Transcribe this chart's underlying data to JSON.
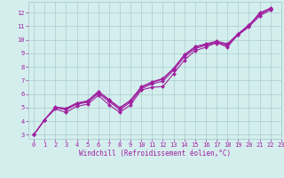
{
  "xlabel": "Windchill (Refroidissement éolien,°C)",
  "background_color": "#d4eeee",
  "line_color": "#a020a0",
  "grid_color": "#aacccc",
  "xlim": [
    -0.5,
    23
  ],
  "ylim": [
    2.7,
    12.8
  ],
  "xticks": [
    0,
    1,
    2,
    3,
    4,
    5,
    6,
    7,
    8,
    9,
    10,
    11,
    12,
    13,
    14,
    15,
    16,
    17,
    18,
    19,
    20,
    21,
    22,
    23
  ],
  "yticks": [
    3,
    4,
    5,
    6,
    7,
    8,
    9,
    10,
    11,
    12
  ],
  "series": [
    {
      "x": [
        0,
        1,
        2,
        3,
        4,
        5,
        6,
        7,
        8,
        9,
        10,
        11,
        12,
        13,
        14,
        15,
        16,
        17,
        18,
        19,
        20,
        21,
        22
      ],
      "y": [
        3.0,
        4.1,
        4.9,
        4.65,
        5.1,
        5.25,
        5.9,
        5.2,
        4.65,
        5.2,
        6.3,
        6.5,
        6.55,
        7.5,
        8.5,
        9.2,
        9.45,
        9.8,
        9.45,
        10.4,
        11.0,
        12.0,
        12.3
      ]
    },
    {
      "x": [
        0,
        1,
        2,
        3,
        4,
        5,
        6,
        7,
        8,
        9,
        10,
        11,
        12,
        13,
        14,
        15,
        16,
        17,
        18,
        19,
        20,
        21,
        22
      ],
      "y": [
        3.0,
        4.1,
        5.0,
        4.85,
        5.25,
        5.4,
        6.05,
        5.45,
        4.85,
        5.4,
        6.4,
        6.75,
        6.95,
        7.75,
        8.75,
        9.35,
        9.6,
        9.75,
        9.6,
        10.35,
        10.95,
        11.75,
        12.2
      ]
    },
    {
      "x": [
        0,
        1,
        2,
        3,
        4,
        5,
        6,
        7,
        8,
        9,
        10,
        11,
        12,
        13,
        14,
        15,
        16,
        17,
        18,
        19,
        20,
        21,
        22
      ],
      "y": [
        3.0,
        4.1,
        5.0,
        4.9,
        5.3,
        5.45,
        6.15,
        5.55,
        4.95,
        5.5,
        6.5,
        6.85,
        7.1,
        7.85,
        8.85,
        9.45,
        9.65,
        9.85,
        9.65,
        10.4,
        11.05,
        11.85,
        12.3
      ]
    },
    {
      "x": [
        0,
        1,
        2,
        3,
        4,
        5,
        6,
        7,
        8,
        9,
        10,
        11,
        12,
        13,
        14,
        15,
        16,
        17,
        18,
        19,
        20,
        21,
        22
      ],
      "y": [
        3.0,
        4.1,
        5.05,
        4.95,
        5.35,
        5.5,
        6.2,
        5.6,
        5.0,
        5.55,
        6.55,
        6.9,
        7.15,
        7.9,
        8.9,
        9.5,
        9.7,
        9.9,
        9.7,
        10.45,
        11.1,
        11.9,
        12.35
      ]
    }
  ],
  "marker": "D",
  "markersize": 2.0,
  "linewidth": 0.8,
  "tick_fontsize": 5.0,
  "xlabel_fontsize": 5.5
}
